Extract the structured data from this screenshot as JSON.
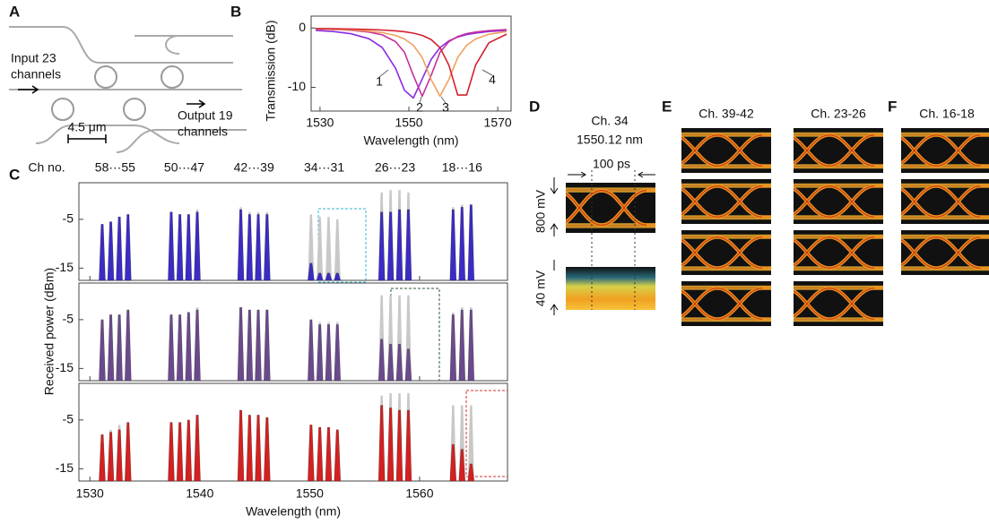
{
  "figure": {
    "panel_labels": [
      "A",
      "B",
      "C",
      "D",
      "E",
      "F"
    ]
  },
  "panel_a": {
    "input": [
      "Input 23",
      "channels"
    ],
    "output": [
      "Output 19",
      "channels"
    ],
    "scale": "4.5 μm"
  },
  "chart_data": [
    {
      "type": "line",
      "xlabel": "Wavelength (nm)",
      "ylabel": "Transmission (dB)",
      "x": [
        1529,
        1533,
        1537,
        1541,
        1544,
        1547,
        1549,
        1551,
        1553,
        1555,
        1557,
        1559,
        1561,
        1563,
        1565,
        1568,
        1572
      ],
      "series": [
        {
          "name": "1",
          "color": "#8a2be2",
          "values": [
            -0.4,
            -0.6,
            -0.97,
            -1.81,
            -3.3,
            -6.8,
            -10.5,
            -11.8,
            -8.6,
            -5.3,
            -3.3,
            -2.17,
            -1.52,
            -1.11,
            -0.85,
            -0.6,
            -0.4
          ]
        },
        {
          "name": "2",
          "color": "#c4309c",
          "values": [
            -0.17,
            -0.25,
            -0.39,
            -0.68,
            -1.15,
            -2.3,
            -4.1,
            -8.0,
            -11.5,
            -8.0,
            -4.1,
            -2.3,
            -1.42,
            -0.95,
            -0.68,
            -0.44,
            -0.28
          ]
        },
        {
          "name": "3",
          "color": "#f0a060",
          "values": [
            -0.17,
            -0.24,
            -0.34,
            -0.53,
            -0.78,
            -1.26,
            -1.85,
            -2.92,
            -4.98,
            -8.67,
            -11.5,
            -8.67,
            -4.98,
            -2.92,
            -1.85,
            -1.06,
            -0.59
          ]
        },
        {
          "name": "4",
          "color": "#d42030",
          "values": [
            -0.1,
            -0.13,
            -0.18,
            -0.25,
            -0.34,
            -0.48,
            -0.63,
            -0.87,
            -1.25,
            -1.94,
            -3.31,
            -6.25,
            -11.3,
            -11.3,
            -6.25,
            -2.5,
            -1.03
          ]
        }
      ],
      "xlim": [
        1528,
        1573
      ],
      "ylim": [
        -14,
        2
      ],
      "xticks": [
        1530,
        1550,
        1570
      ],
      "yticks": [
        0,
        -10
      ]
    },
    {
      "type": "spectrum",
      "channel_label": "Ch no.",
      "groups": [
        "58···55",
        "50···47",
        "42···39",
        "34···31",
        "26···23",
        "18···16"
      ],
      "xlabel": "Wavelength (nm)",
      "ylabel": "Received power (dBm)",
      "x": [
        1531.12,
        1531.9,
        1532.68,
        1533.47,
        1537.4,
        1538.19,
        1538.98,
        1539.77,
        1543.73,
        1544.53,
        1545.32,
        1546.12,
        1550.12,
        1550.92,
        1551.72,
        1552.52,
        1556.55,
        1557.36,
        1558.17,
        1558.98,
        1563.05,
        1563.86,
        1564.68
      ],
      "panels": [
        {
          "series": [
            {
              "color": "#c8c8c8",
              "values": [
                -6,
                -5.5,
                -4.5,
                -4,
                -3.5,
                -4,
                -4,
                -3,
                -2.5,
                -3.5,
                -3.5,
                -3.5,
                -4,
                -4.5,
                -4.5,
                -5,
                0.5,
                1,
                1,
                0.5,
                -2.5,
                -2,
                -2
              ]
            },
            {
              "color": "#3b2cc4",
              "values": [
                -6,
                -5.5,
                -4.5,
                -4,
                -3.5,
                -4,
                -4,
                -3.5,
                -3,
                -4,
                -4,
                -4,
                -14,
                -16,
                -16,
                -16,
                -3.5,
                -3.5,
                -3,
                -3,
                -3,
                -2.5,
                -2
              ]
            }
          ]
        },
        {
          "series": [
            {
              "color": "#c8c8c8",
              "values": [
                -5,
                -4,
                -4,
                -3,
                -4,
                -4,
                -3.5,
                -2.5,
                -2.5,
                -3,
                -3,
                -3,
                -5,
                -5.5,
                -5.5,
                -5.5,
                0,
                0,
                0,
                0,
                -3.5,
                -2.5,
                -2.5
              ]
            },
            {
              "color": "#6a4a8c",
              "values": [
                -5,
                -4,
                -4,
                -3,
                -4,
                -4,
                -3.5,
                -3,
                -2.5,
                -3,
                -3,
                -3,
                -5,
                -6,
                -6,
                -6,
                -9,
                -10,
                -10,
                -11,
                -4,
                -3,
                -3
              ]
            }
          ]
        },
        {
          "series": [
            {
              "color": "#c8c8c8",
              "values": [
                -8,
                -7,
                -6,
                -5.5,
                -5.5,
                -5.5,
                -5,
                -4,
                -3,
                -4,
                -4,
                -4.5,
                -6,
                -6.5,
                -6.5,
                -7,
                0,
                0.5,
                0.5,
                0.5,
                -2,
                -2,
                -2
              ]
            },
            {
              "color": "#d42020",
              "values": [
                -8,
                -7.5,
                -7,
                -5.5,
                -5.5,
                -5.5,
                -5,
                -4,
                -3,
                -4,
                -4,
                -4.5,
                -6,
                -6.5,
                -6.5,
                -7,
                -2,
                -2.5,
                -3,
                -3,
                -10,
                -11,
                -14
              ]
            }
          ]
        }
      ],
      "xlim": [
        1529,
        1568
      ],
      "ylim": [
        -17.5,
        2.5
      ],
      "xticks": [
        1530,
        1540,
        1550,
        1560
      ],
      "yticks": [
        -5,
        -15
      ]
    }
  ],
  "panel_d": {
    "title": "Ch. 34",
    "wavelength": "1550.12 nm",
    "time": "100 ps",
    "upper": "800 mV",
    "lower": "40 mV"
  },
  "panel_e": {
    "columns": [
      "Ch. 39-42",
      "Ch. 23-26"
    ]
  },
  "panel_f": {
    "columns": [
      "Ch. 16-18"
    ]
  }
}
